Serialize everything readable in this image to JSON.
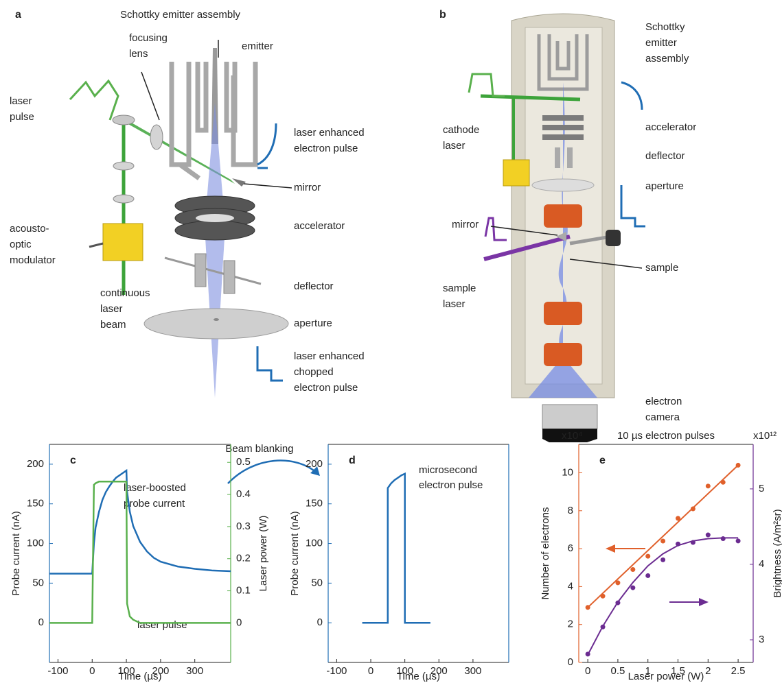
{
  "panel_a": {
    "label": "a",
    "title": "Schottky emitter assembly",
    "labels": [
      [
        "emitter"
      ],
      [
        "focusing",
        "lens"
      ],
      [
        "laser",
        "pulse"
      ],
      [
        "laser enhanced",
        "electron pulse"
      ],
      [
        "mirror"
      ],
      [
        "accelerator"
      ],
      [
        "acousto-",
        "optic",
        "modulator"
      ],
      [
        "deflector"
      ],
      [
        "continuous",
        "laser",
        "beam"
      ],
      [
        "aperture"
      ],
      [
        "laser enhanced",
        "chopped",
        "electron pulse"
      ]
    ]
  },
  "panel_b": {
    "label": "b",
    "labels": [
      [
        "Schottky",
        "emitter",
        "assembly"
      ],
      [
        "accelerator"
      ],
      [
        "cathode",
        "laser"
      ],
      [
        "deflector"
      ],
      [
        "aperture"
      ],
      [
        "mirror"
      ],
      [
        "sample"
      ],
      [
        "sample",
        "laser"
      ],
      [
        "electron",
        "camera"
      ]
    ]
  },
  "arrow_label": "Beam blanking",
  "chart_data": [
    {
      "type": "line",
      "label": "c",
      "xlabel": "Time (µs)",
      "ylabel": "Probe current (nA)",
      "y2label": "Laser power (W)",
      "xlim": [
        -125,
        405
      ],
      "xticks": [
        -100,
        0,
        100,
        200,
        300
      ],
      "ylim": [
        -50,
        225
      ],
      "yticks": [
        0,
        50,
        100,
        150,
        200
      ],
      "y2lim": [
        -0.123,
        0.556
      ],
      "y2ticks": [
        0,
        0.1,
        0.2,
        0.3,
        0.4,
        0.5
      ],
      "x": [
        -125,
        -50,
        0,
        5,
        10,
        20,
        30,
        40,
        50,
        60,
        70,
        80,
        90,
        100,
        102,
        110,
        120,
        140,
        160,
        180,
        200,
        250,
        300,
        350,
        405
      ],
      "series": [
        {
          "color": "#1f6db4",
          "values": [
            62,
            62,
            62,
            100,
            120,
            140,
            155,
            165,
            172,
            178,
            183,
            186,
            189,
            192,
            165,
            140,
            122,
            102,
            90,
            82,
            77,
            71,
            68,
            66,
            65
          ]
        },
        {
          "color": "#59b04c",
          "axis": "y2",
          "values": [
            0,
            0,
            0,
            0.43,
            0.435,
            0.44,
            0.44,
            0.44,
            0.44,
            0.44,
            0.44,
            0.44,
            0.44,
            0.44,
            0.06,
            0.02,
            0.01,
            0,
            0,
            0,
            0,
            0,
            0,
            0,
            0
          ]
        }
      ],
      "annotations": [
        "laser-boosted",
        "probe current",
        "laser pulse"
      ]
    },
    {
      "type": "line",
      "label": "d",
      "xlabel": "Time (µs)",
      "ylabel": "Probe current (nA)",
      "xlim": [
        -125,
        405
      ],
      "xticks": [
        -100,
        0,
        100,
        200,
        300
      ],
      "ylim": [
        -50,
        225
      ],
      "yticks": [
        0,
        50,
        100,
        150,
        200
      ],
      "x": [
        -25,
        50,
        50,
        60,
        70,
        80,
        90,
        100,
        100,
        175
      ],
      "series": [
        {
          "color": "#1f6db4",
          "values": [
            0,
            0,
            170,
            176,
            180,
            183,
            186,
            188,
            0,
            0
          ]
        }
      ],
      "annotations": [
        "microsecond",
        "electron pulse"
      ]
    },
    {
      "type": "scatter",
      "label": "e",
      "title": "10 µs electron pulses",
      "xlabel": "Laser power (W)",
      "ylabel": "Number of electrons",
      "y2label": "Brightness (A/m²sr)",
      "ymultiplier": "x10⁴",
      "y2multiplier": "x10¹²",
      "xlim": [
        -0.15,
        2.75
      ],
      "xticks": [
        0,
        0.5,
        1,
        1.5,
        2,
        2.5
      ],
      "ylim": [
        0,
        11.5
      ],
      "yticks": [
        0,
        2,
        4,
        6,
        8,
        10
      ],
      "y2lim": [
        2.7,
        5.59
      ],
      "y2ticks": [
        3,
        4,
        5
      ],
      "x": [
        0,
        0.25,
        0.5,
        0.75,
        1,
        1.25,
        1.5,
        1.75,
        2,
        2.25,
        2.5
      ],
      "series": [
        {
          "color": "#e0602b",
          "values": [
            2.9,
            3.5,
            4.2,
            4.9,
            5.6,
            6.4,
            7.6,
            8.1,
            9.3,
            9.5,
            10.4
          ]
        },
        {
          "color": "#6b2c91",
          "axis": "y2",
          "values": [
            2.81,
            3.17,
            3.49,
            3.69,
            3.85,
            4.06,
            4.27,
            4.29,
            4.39,
            4.34,
            4.31
          ]
        }
      ],
      "fits": [
        {
          "color": "#e0602b",
          "x": [
            0,
            2.5
          ],
          "values": [
            2.9,
            10.4
          ]
        },
        {
          "color": "#6b2c91",
          "axis": "y2",
          "x": [
            0,
            0.25,
            0.5,
            0.75,
            1,
            1.25,
            1.5,
            1.75,
            2,
            2.25,
            2.5
          ],
          "values": [
            2.8,
            3.18,
            3.5,
            3.76,
            3.98,
            4.14,
            4.25,
            4.31,
            4.34,
            4.35,
            4.35
          ]
        }
      ]
    }
  ]
}
